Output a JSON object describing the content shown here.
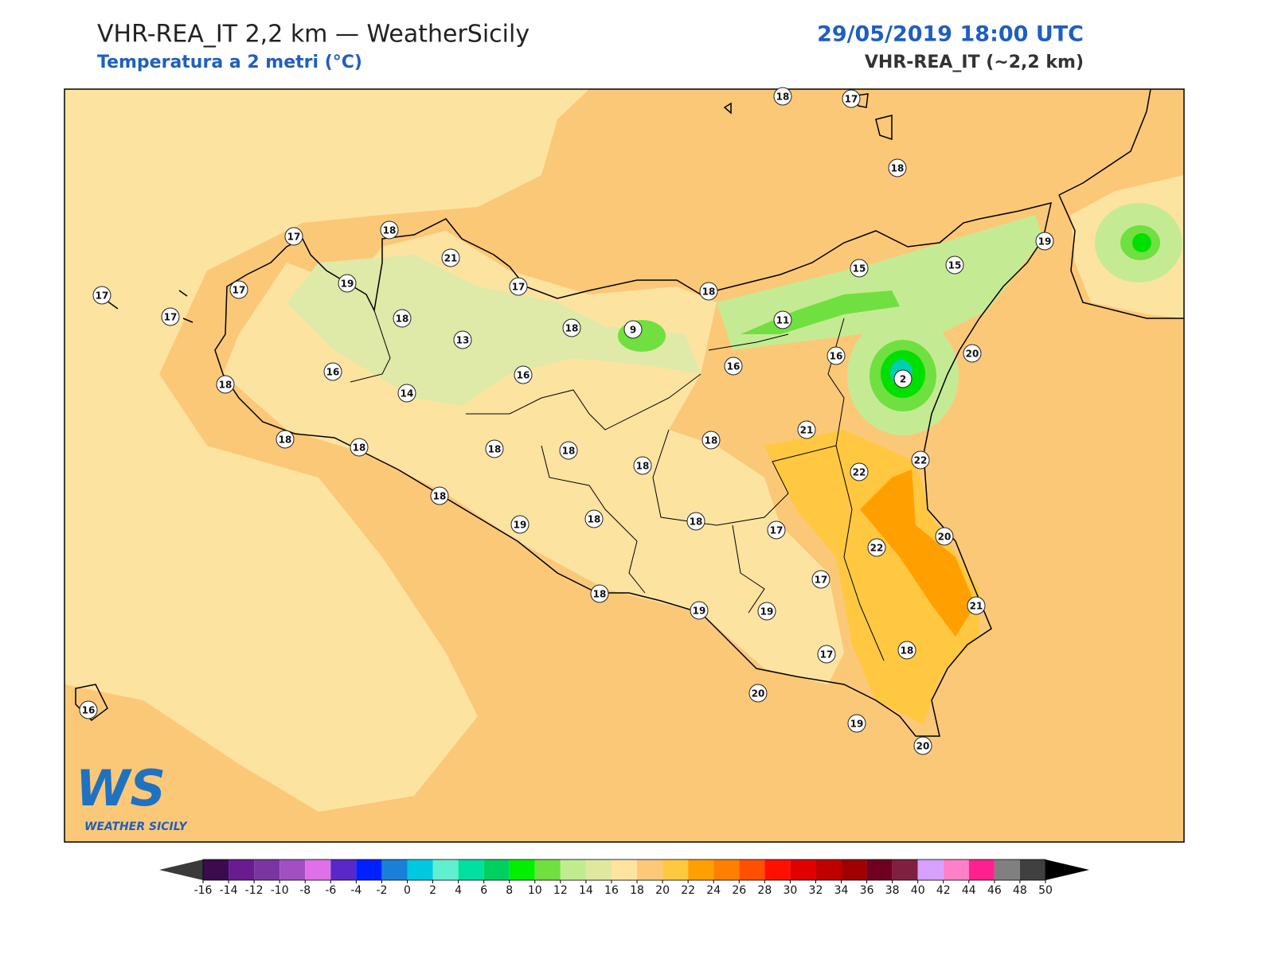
{
  "header": {
    "title": "VHR-REA_IT 2,2 km — WeatherSicily",
    "subtitle": "Temperatura a 2 metri (°C)",
    "date": "29/05/2019 18:00 UTC",
    "model": "VHR-REA_IT (~2,2 km)"
  },
  "logo": {
    "mark": "WS",
    "text": "WEATHER SICILY"
  },
  "stations": [
    18,
    17,
    18,
    17,
    18,
    21,
    17,
    19,
    17,
    17,
    17,
    18,
    15,
    15,
    19,
    18,
    18,
    9,
    11,
    13,
    16,
    16,
    16,
    16,
    20,
    2,
    18,
    14,
    18,
    18,
    18,
    18,
    18,
    18,
    21,
    22,
    22,
    18,
    19,
    18,
    18,
    17,
    20,
    22,
    17,
    18,
    19,
    19,
    21,
    18,
    17,
    20,
    19,
    20,
    16
  ],
  "colorbar": {
    "ticks": [
      -16,
      -14,
      -12,
      -10,
      -8,
      -6,
      -4,
      -2,
      0,
      2,
      4,
      6,
      8,
      10,
      12,
      14,
      16,
      18,
      20,
      22,
      24,
      26,
      28,
      30,
      32,
      34,
      36,
      38,
      40,
      42,
      44,
      46,
      48,
      50
    ],
    "colors": [
      "#3b0a4f",
      "#6a1b8f",
      "#7b35a0",
      "#a050c0",
      "#e070e8",
      "#5a28c8",
      "#0020ff",
      "#1a7fd8",
      "#00c8e0",
      "#60f0d0",
      "#00e0a0",
      "#00d060",
      "#00f000",
      "#70e040",
      "#c0ec90",
      "#e0e8a0",
      "#ffe4a0",
      "#fdc878",
      "#ffc840",
      "#ffa000",
      "#ff8000",
      "#ff5000",
      "#ff1000",
      "#e00000",
      "#c00000",
      "#a00000",
      "#700020",
      "#802040",
      "#d8a0ff",
      "#ff80c8",
      "#ff2090",
      "#808080",
      "#404040"
    ],
    "under": "#3a3a3a",
    "over": "#000000"
  }
}
